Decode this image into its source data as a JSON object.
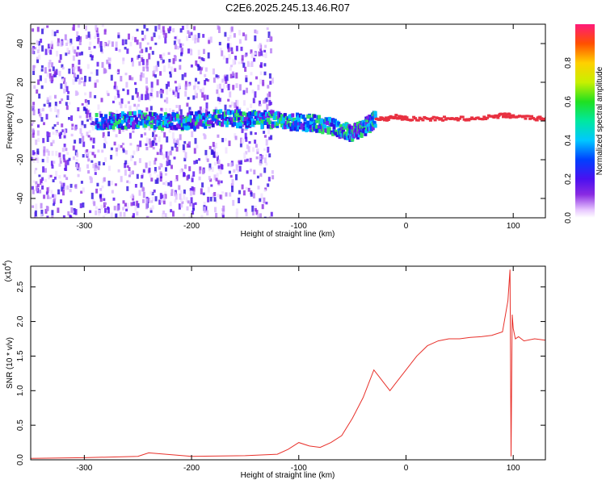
{
  "title": "C2E6.2025.245.13.46.R07",
  "chart_data": [
    {
      "type": "heatmap",
      "xlabel": "Height of straight line (km)",
      "ylabel": "Frequency (Hz)",
      "xlim": [
        -350,
        130
      ],
      "ylim": [
        -50,
        50
      ],
      "xticks": [
        -300,
        -200,
        -100,
        0,
        100
      ],
      "yticks": [
        -40,
        -20,
        0,
        20,
        40
      ],
      "colorbar": {
        "label": "Normalized spectral amplitude",
        "range": [
          0,
          1
        ],
        "ticks": [
          0.0,
          0.2,
          0.4,
          0.6,
          0.8
        ]
      },
      "ridge": {
        "x": [
          -290,
          -270,
          -250,
          -230,
          -210,
          -190,
          -170,
          -150,
          -130,
          -110,
          -90,
          -75,
          -60,
          -50,
          -40,
          -30,
          -20,
          -10,
          0,
          20,
          40,
          60,
          80,
          90,
          100,
          120,
          130
        ],
        "y": [
          0,
          0,
          1,
          0,
          0,
          1,
          2,
          1,
          1,
          0,
          -1,
          -2,
          -5,
          -6,
          -3,
          1,
          1,
          2,
          1,
          1,
          1,
          1,
          2,
          3,
          2,
          1,
          1
        ]
      }
    },
    {
      "type": "line",
      "xlabel": "Height of straight line (km)",
      "ylabel": "SNR (10 * v/v)",
      "multiplier_label": "(x10",
      "multiplier_exp": "4",
      "xlim": [
        -350,
        130
      ],
      "ylim": [
        0,
        2.8
      ],
      "xticks": [
        -300,
        -200,
        -100,
        0,
        100
      ],
      "yticks": [
        0.0,
        0.5,
        1.0,
        1.5,
        2.0,
        2.5
      ],
      "series": [
        {
          "color": "#e8302a",
          "x": [
            -350,
            -300,
            -250,
            -240,
            -200,
            -150,
            -120,
            -110,
            -100,
            -90,
            -80,
            -70,
            -60,
            -50,
            -40,
            -30,
            -25,
            -20,
            -15,
            -10,
            0,
            10,
            20,
            30,
            40,
            50,
            60,
            70,
            80,
            90,
            95,
            97,
            98,
            99,
            100,
            102,
            105,
            110,
            120,
            130
          ],
          "y": [
            0.02,
            0.03,
            0.05,
            0.1,
            0.05,
            0.06,
            0.08,
            0.15,
            0.25,
            0.2,
            0.18,
            0.25,
            0.35,
            0.6,
            0.9,
            1.3,
            1.2,
            1.1,
            1.0,
            1.1,
            1.3,
            1.5,
            1.65,
            1.72,
            1.75,
            1.75,
            1.77,
            1.78,
            1.8,
            1.85,
            2.3,
            2.75,
            0.05,
            2.1,
            1.9,
            1.75,
            1.78,
            1.72,
            1.75,
            1.73
          ]
        }
      ]
    }
  ]
}
